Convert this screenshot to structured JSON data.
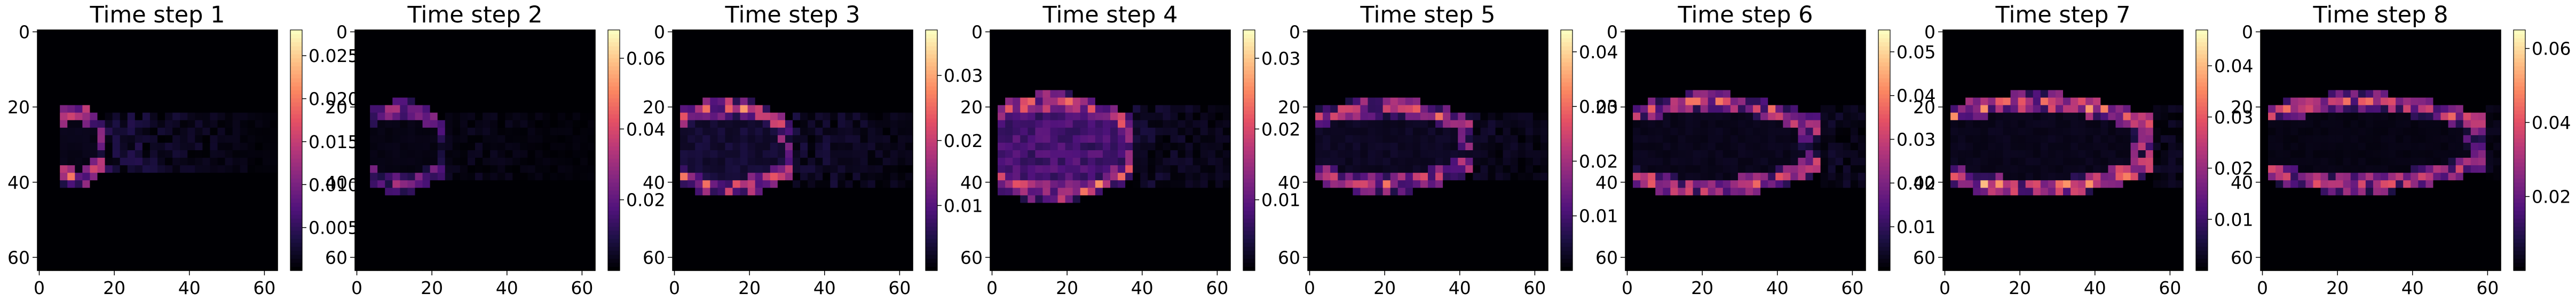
{
  "chart_data": [
    {
      "type": "heatmap",
      "title": "Time step 1",
      "x_ticks": [
        "0",
        "20",
        "40",
        "60"
      ],
      "y_ticks": [
        "0",
        "20",
        "40",
        "60"
      ],
      "colorbar": {
        "vmin": 0,
        "vmax": 0.028,
        "ticks": [
          "0.005",
          "0.010",
          "0.015",
          "0.020",
          "0.025"
        ]
      },
      "colormap": "magma",
      "grid": "64x64",
      "hotspot_cols": [
        0.08,
        0.28
      ],
      "hotspot_rows": [
        0.34,
        0.62
      ],
      "inner_peak": 0.05,
      "front_peak": 0.85,
      "trail": 0.18
    },
    {
      "type": "heatmap",
      "title": "Time step 2",
      "x_ticks": [
        "0",
        "20",
        "40",
        "60"
      ],
      "y_ticks": [
        "0",
        "20",
        "40",
        "60"
      ],
      "colorbar": {
        "vmin": 0,
        "vmax": 0.068,
        "ticks": [
          "0.02",
          "0.04",
          "0.06"
        ]
      },
      "colormap": "magma",
      "grid": "64x64",
      "hotspot_cols": [
        0.06,
        0.38
      ],
      "hotspot_rows": [
        0.33,
        0.64
      ],
      "inner_peak": 0.04,
      "front_peak": 0.55,
      "trail": 0.08
    },
    {
      "type": "heatmap",
      "title": "Time step 3",
      "x_ticks": [
        "0",
        "20",
        "40",
        "60"
      ],
      "y_ticks": [
        "0",
        "20",
        "40",
        "60"
      ],
      "colorbar": {
        "vmin": 0,
        "vmax": 0.037,
        "ticks": [
          "0.01",
          "0.02",
          "0.03"
        ]
      },
      "colormap": "magma",
      "grid": "64x64",
      "hotspot_cols": [
        0.04,
        0.5
      ],
      "hotspot_rows": [
        0.32,
        0.66
      ],
      "inner_peak": 0.12,
      "front_peak": 0.8,
      "trail": 0.14
    },
    {
      "type": "heatmap",
      "title": "Time step 4",
      "x_ticks": [
        "0",
        "20",
        "40",
        "60"
      ],
      "y_ticks": [
        "0",
        "20",
        "40",
        "60"
      ],
      "colorbar": {
        "vmin": 0,
        "vmax": 0.034,
        "ticks": [
          "0.01",
          "0.02",
          "0.03"
        ]
      },
      "colormap": "magma",
      "grid": "64x64",
      "hotspot_cols": [
        0.02,
        0.6
      ],
      "hotspot_rows": [
        0.3,
        0.68
      ],
      "inner_peak": 0.3,
      "front_peak": 0.85,
      "trail": 0.12
    },
    {
      "type": "heatmap",
      "title": "Time step 5",
      "x_ticks": [
        "0",
        "20",
        "40",
        "60"
      ],
      "y_ticks": [
        "0",
        "20",
        "40",
        "60"
      ],
      "colorbar": {
        "vmin": 0,
        "vmax": 0.044,
        "ticks": [
          "0.01",
          "0.02",
          "0.03",
          "0.04"
        ]
      },
      "colormap": "magma",
      "grid": "64x64",
      "hotspot_cols": [
        0.04,
        0.7
      ],
      "hotspot_rows": [
        0.32,
        0.64
      ],
      "inner_peak": 0.08,
      "front_peak": 0.75,
      "trail": 0.1
    },
    {
      "type": "heatmap",
      "title": "Time step 6",
      "x_ticks": [
        "0",
        "20",
        "40",
        "60"
      ],
      "y_ticks": [
        "0",
        "20",
        "40",
        "60"
      ],
      "colorbar": {
        "vmin": 0,
        "vmax": 0.055,
        "ticks": [
          "0.01",
          "0.02",
          "0.03",
          "0.04",
          "0.05"
        ]
      },
      "colormap": "magma",
      "grid": "64x64",
      "hotspot_cols": [
        0.03,
        0.8
      ],
      "hotspot_rows": [
        0.3,
        0.66
      ],
      "inner_peak": 0.06,
      "front_peak": 0.8,
      "trail": 0.1
    },
    {
      "type": "heatmap",
      "title": "Time step 7",
      "x_ticks": [
        "0",
        "20",
        "40",
        "60"
      ],
      "y_ticks": [
        "0",
        "20",
        "40",
        "60"
      ],
      "colorbar": {
        "vmin": 0,
        "vmax": 0.047,
        "ticks": [
          "0.01",
          "0.02",
          "0.03",
          "0.04"
        ]
      },
      "colormap": "magma",
      "grid": "64x64",
      "hotspot_cols": [
        0.03,
        0.88
      ],
      "hotspot_rows": [
        0.3,
        0.66
      ],
      "inner_peak": 0.06,
      "front_peak": 0.9,
      "trail": 0.08
    },
    {
      "type": "heatmap",
      "title": "Time step 8",
      "x_ticks": [
        "0",
        "20",
        "40",
        "60"
      ],
      "y_ticks": [
        "0",
        "20",
        "40",
        "60"
      ],
      "colorbar": {
        "vmin": 0,
        "vmax": 0.065,
        "ticks": [
          "0.02",
          "0.04",
          "0.06"
        ]
      },
      "colormap": "magma",
      "grid": "64x64",
      "hotspot_cols": [
        0.03,
        0.94
      ],
      "hotspot_rows": [
        0.3,
        0.64
      ],
      "inner_peak": 0.04,
      "front_peak": 0.75,
      "trail": 0.06
    }
  ]
}
